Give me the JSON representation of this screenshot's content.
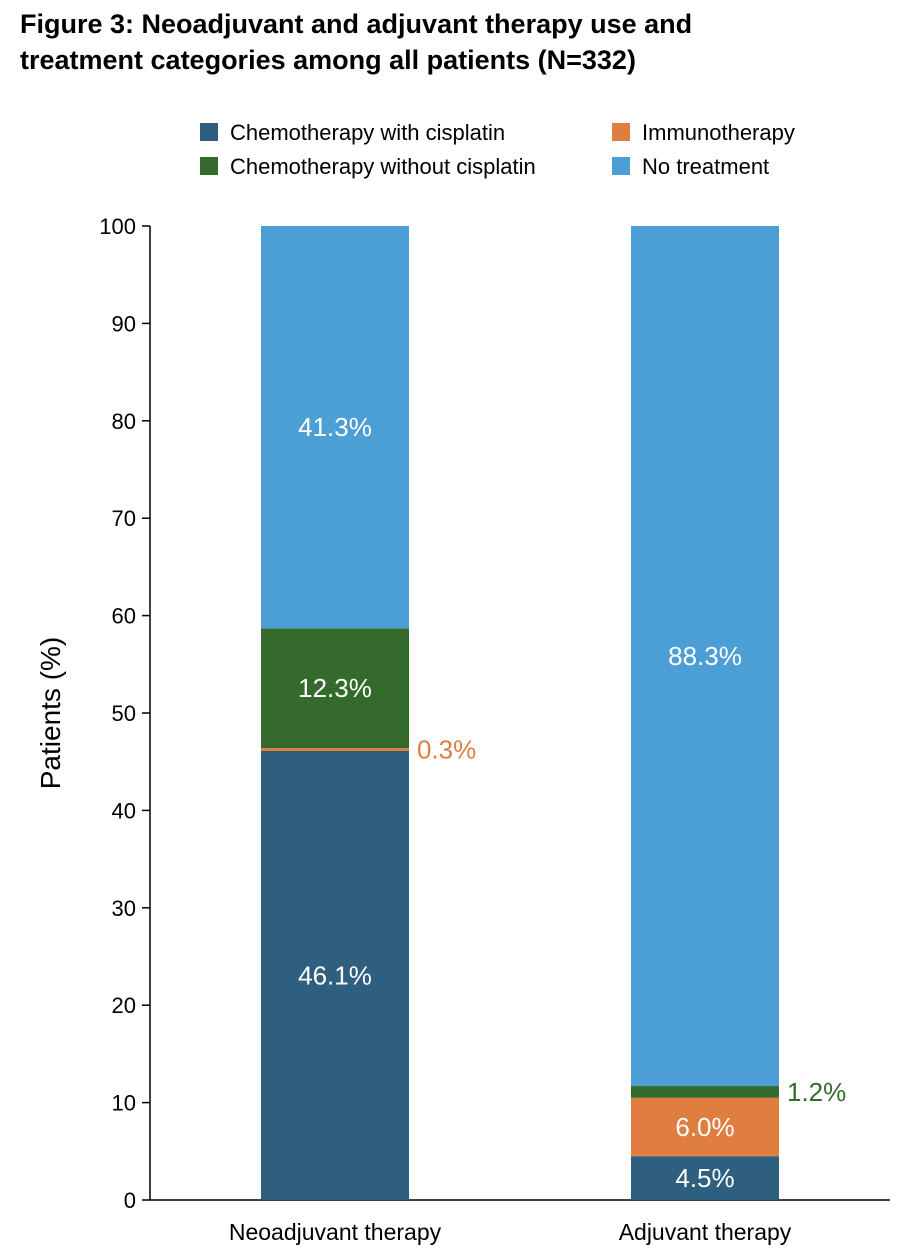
{
  "title_lines": [
    "Figure 3: Neoadjuvant and adjuvant therapy use and",
    "treatment categories among all patients (N=332)"
  ],
  "colors": {
    "chemo_cis": "#2f5f7f",
    "chemo_nocis": "#346b2d",
    "immuno": "#e07e3f",
    "none": "#4b9fd4"
  },
  "chart_data": {
    "type": "bar",
    "stacked": true,
    "categories": [
      "Neoadjuvant therapy",
      "Adjuvant therapy"
    ],
    "ylabel": "Patients (%)",
    "ylim": [
      0,
      100
    ],
    "yticks": [
      0,
      10,
      20,
      30,
      40,
      50,
      60,
      70,
      80,
      90,
      100
    ],
    "grid": false,
    "legend_position": "top",
    "series": [
      {
        "name": "Chemotherapy with cisplatin",
        "color": "#2f5f7f",
        "values": [
          46.1,
          4.5
        ],
        "labels": [
          "46.1%",
          "4.5%"
        ]
      },
      {
        "name": "Immunotherapy",
        "color": "#e07e3f",
        "values": [
          0.3,
          6.0
        ],
        "labels": [
          "0.3%",
          "6.0%"
        ]
      },
      {
        "name": "Chemotherapy without cisplatin",
        "color": "#346b2d",
        "values": [
          12.3,
          1.2
        ],
        "labels": [
          "12.3%",
          "1.2%"
        ]
      },
      {
        "name": "No treatment",
        "color": "#4b9fd4",
        "values": [
          41.3,
          88.3
        ],
        "labels": [
          "41.3%",
          "88.3%"
        ]
      }
    ],
    "legend_order": [
      "Chemotherapy with cisplatin",
      "Immunotherapy",
      "Chemotherapy without cisplatin",
      "No treatment"
    ]
  }
}
